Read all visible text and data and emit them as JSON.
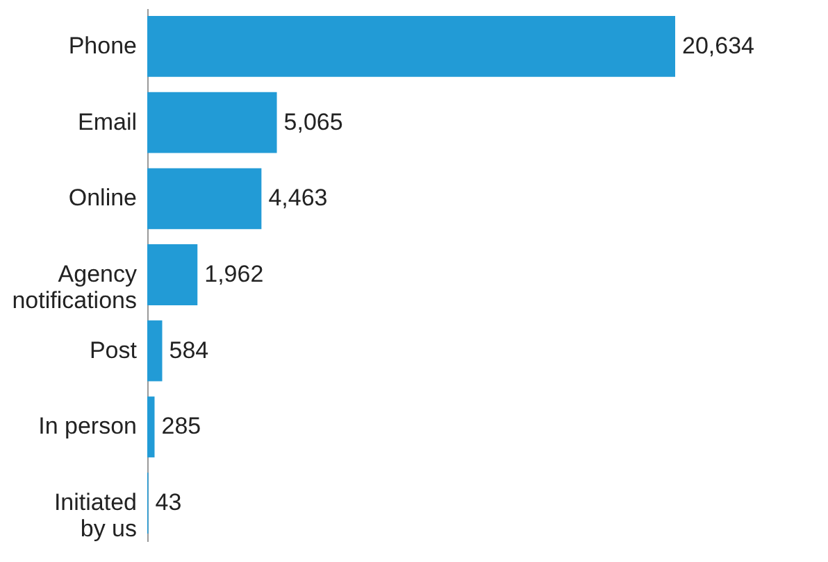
{
  "chart_data": {
    "type": "bar",
    "orientation": "horizontal",
    "categories": [
      "Phone",
      "Email",
      "Online",
      "Agency notifications",
      "Post",
      "In person",
      "Initiated by us"
    ],
    "values": [
      20634,
      5065,
      4463,
      1962,
      584,
      285,
      43
    ],
    "value_labels": [
      "20,634",
      "5,065",
      "4,463",
      "1,962",
      "584",
      "285",
      "43"
    ],
    "color": "#229bd6",
    "grid": false,
    "tick_labels": "y"
  }
}
